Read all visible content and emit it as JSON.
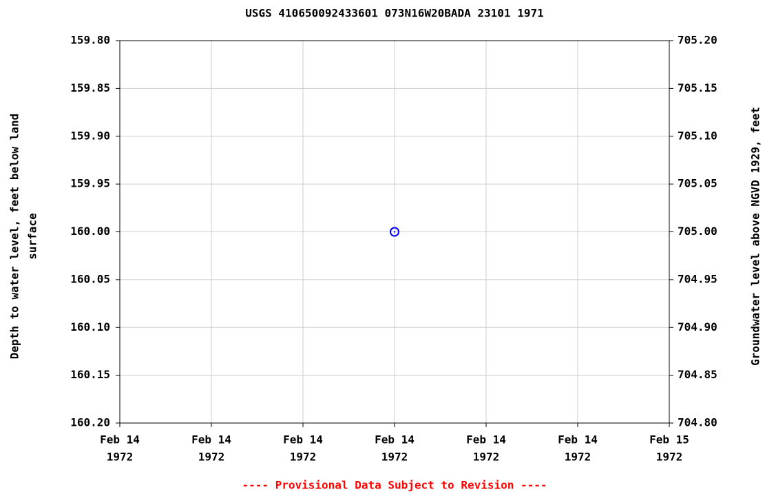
{
  "chart_data": {
    "type": "scatter",
    "title": "USGS 410650092433601 073N16W20BADA 23101 1971",
    "ylabel": [
      "Depth to water level, feet below land",
      "surface"
    ],
    "y2label": "Groundwater level above NGVD 1929, feet",
    "footnote": "---- Provisional Data Subject to Revision ----",
    "categories": [
      [
        "Feb 14",
        "1972"
      ],
      [
        "Feb 14",
        "1972"
      ],
      [
        "Feb 14",
        "1972"
      ],
      [
        "Feb 14",
        "1972"
      ],
      [
        "Feb 14",
        "1972"
      ],
      [
        "Feb 14",
        "1972"
      ],
      [
        "Feb 15",
        "1972"
      ]
    ],
    "series": [
      {
        "color": "#0000ff",
        "values": [
          null,
          null,
          null,
          160.0,
          null,
          null,
          null
        ]
      }
    ],
    "ylim": [
      159.8,
      160.2
    ],
    "yticks": [
      {
        "value": 159.8,
        "label": "159.80"
      },
      {
        "value": 159.85,
        "label": "159.85"
      },
      {
        "value": 159.9,
        "label": "159.90"
      },
      {
        "value": 159.95,
        "label": "159.95"
      },
      {
        "value": 160.0,
        "label": "160.00"
      },
      {
        "value": 160.05,
        "label": "160.05"
      },
      {
        "value": 160.1,
        "label": "160.10"
      },
      {
        "value": 160.15,
        "label": "160.15"
      },
      {
        "value": 160.2,
        "label": "160.20"
      }
    ],
    "y2lim": [
      705.2,
      704.8
    ],
    "y2ticks": [
      {
        "value": 705.2,
        "label": "705.20"
      },
      {
        "value": 705.15,
        "label": "705.15"
      },
      {
        "value": 705.1,
        "label": "705.10"
      },
      {
        "value": 705.05,
        "label": "705.05"
      },
      {
        "value": 705.0,
        "label": "705.00"
      },
      {
        "value": 704.95,
        "label": "704.95"
      },
      {
        "value": 704.9,
        "label": "704.90"
      },
      {
        "value": 704.85,
        "label": "704.85"
      },
      {
        "value": 704.8,
        "label": "704.80"
      }
    ],
    "grid": true,
    "footnote_color": "#ff0000"
  }
}
